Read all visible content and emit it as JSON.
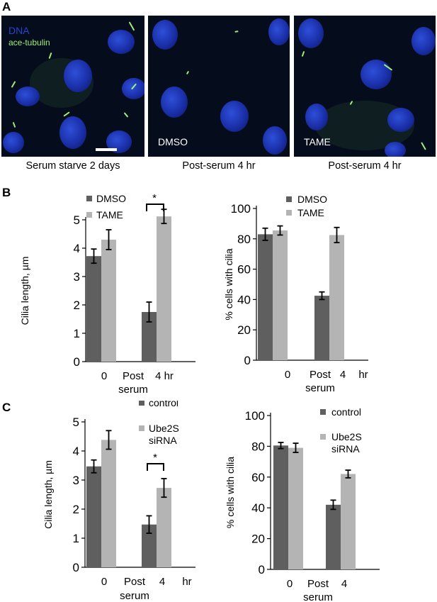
{
  "panels": {
    "a": "A",
    "b": "B",
    "c": "C"
  },
  "micrographs": {
    "legend_dna": "DNA",
    "legend_tubulin": "ace-tubulin",
    "images": [
      {
        "label": "",
        "caption": "Serum starve 2 days"
      },
      {
        "label": "DMSO",
        "caption": "Post-serum  4 hr"
      },
      {
        "label": "TAME",
        "caption": "Post-serum  4 hr"
      }
    ],
    "colors": {
      "dna": "#2a44cc",
      "tubulin": "#9cf07a",
      "background": "#050c1c"
    }
  },
  "chart_data": [
    {
      "type": "bar",
      "panel": "B",
      "ylabel": "Cilia length, µm",
      "ylim": [
        0,
        5
      ],
      "yticks": [
        "0",
        "1",
        "2",
        "3",
        "4",
        "5"
      ],
      "xtick_labels": [
        "0",
        "Post",
        "serum",
        "4 hr"
      ],
      "series": [
        {
          "name": "DMSO",
          "color": "#5f5f5f",
          "values": [
            3.72,
            1.75
          ],
          "errors": [
            0.25,
            0.35
          ]
        },
        {
          "name": "TAME",
          "color": "#b4b4b4",
          "values": [
            4.3,
            5.12
          ],
          "errors": [
            0.35,
            0.25
          ]
        }
      ],
      "significance": "*"
    },
    {
      "type": "bar",
      "panel": "B",
      "ylabel": "% cells with cilia",
      "ylim": [
        0,
        100
      ],
      "yticks": [
        "0",
        "20",
        "40",
        "60",
        "80",
        "100"
      ],
      "xtick_labels": [
        "0",
        "Post",
        "serum",
        "4",
        "hr"
      ],
      "series": [
        {
          "name": "DMSO",
          "color": "#5f5f5f",
          "values": [
            83,
            42.5
          ],
          "errors": [
            4,
            2.5
          ]
        },
        {
          "name": "TAME",
          "color": "#b4b4b4",
          "values": [
            85.5,
            82.5
          ],
          "errors": [
            3,
            5
          ]
        }
      ]
    },
    {
      "type": "bar",
      "panel": "C",
      "ylabel": "Cilia length, µm",
      "ylim": [
        0,
        5
      ],
      "yticks": [
        "0",
        "1",
        "2",
        "3",
        "4",
        "5"
      ],
      "xtick_labels": [
        "0",
        "Post",
        "serum",
        "4",
        "hr"
      ],
      "series": [
        {
          "name": "control",
          "color": "#5f5f5f",
          "values": [
            3.47,
            1.47
          ],
          "errors": [
            0.22,
            0.3
          ]
        },
        {
          "name": "Ube2S siRNA",
          "color": "#b4b4b4",
          "values": [
            4.38,
            2.73
          ],
          "errors": [
            0.32,
            0.32
          ]
        }
      ],
      "significance": "*"
    },
    {
      "type": "bar",
      "panel": "C",
      "ylabel": "% cells with cilia",
      "ylim": [
        0,
        100
      ],
      "yticks": [
        "0",
        "20",
        "40",
        "60",
        "80",
        "100"
      ],
      "xtick_labels": [
        "0",
        "Post",
        "serum",
        "4"
      ],
      "series": [
        {
          "name": "control",
          "color": "#5f5f5f",
          "values": [
            80.5,
            42
          ],
          "errors": [
            2,
            3
          ]
        },
        {
          "name": "Ube2S siRNA",
          "color": "#b4b4b4",
          "values": [
            79,
            62
          ],
          "errors": [
            3,
            2.5
          ]
        }
      ]
    }
  ]
}
